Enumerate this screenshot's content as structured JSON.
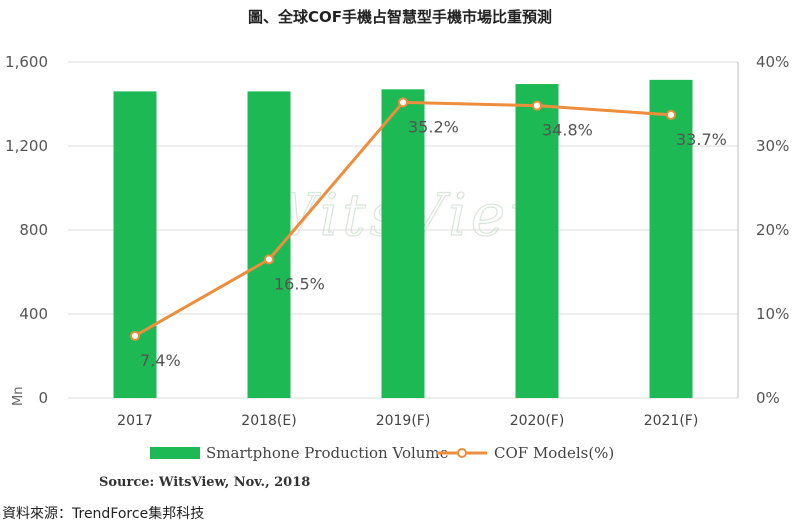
{
  "chart_data": {
    "type": "bar",
    "title": "圖、全球COF手機占智慧型手機市場比重預測",
    "categories": [
      "2017",
      "2018(E)",
      "2019(F)",
      "2020(F)",
      "2021(F)"
    ],
    "series": [
      {
        "name": "Smartphone Production Volume",
        "type": "bar",
        "axis": "left",
        "values": [
          1460,
          1460,
          1470,
          1495,
          1515
        ],
        "color": "#1db954"
      },
      {
        "name": "COF Models(%)",
        "type": "line",
        "axis": "right",
        "values": [
          7.4,
          16.5,
          35.2,
          34.8,
          33.7
        ],
        "color": "#ed8e3e",
        "labels": [
          "7.4%",
          "16.5%",
          "35.2%",
          "34.8%",
          "33.7%"
        ]
      }
    ],
    "ylabel": "Mn",
    "ylim": [
      0,
      1600
    ],
    "yticks": [
      "0",
      "400",
      "800",
      "1,200",
      "1,600"
    ],
    "y2lim": [
      0,
      40
    ],
    "y2ticks": [
      "0%",
      "10%",
      "20%",
      "30%",
      "40%"
    ],
    "grid": true,
    "legend": "bottom"
  },
  "source_note": "Source: WitsView, Nov., 2018",
  "footer": "資料來源：TrendForce集邦科技",
  "watermark": "WitsView"
}
